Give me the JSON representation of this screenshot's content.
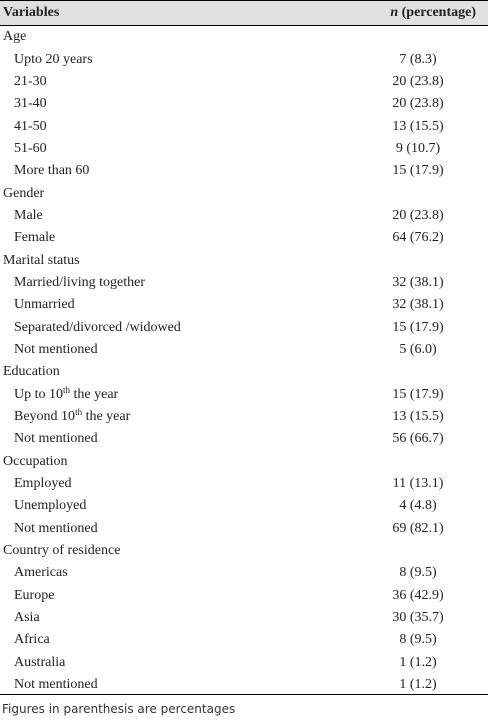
{
  "header": {
    "variables": "Variables",
    "n": "n",
    "percentage": "(percentage)"
  },
  "rows": [
    {
      "label": "Age",
      "type": "cat"
    },
    {
      "label": "Upto 20 years",
      "value": "7 (8.3)"
    },
    {
      "label": "21-30",
      "value": "20 (23.8)"
    },
    {
      "label": "31-40",
      "value": "20 (23.8)"
    },
    {
      "label": "41-50",
      "value": "13 (15.5)"
    },
    {
      "label": "51-60",
      "value": "9 (10.7)"
    },
    {
      "label": "More than 60",
      "value": "15 (17.9)"
    },
    {
      "label": "Gender",
      "type": "cat"
    },
    {
      "label": "Male",
      "value": "20 (23.8)"
    },
    {
      "label": "Female",
      "value": "64 (76.2)"
    },
    {
      "label": "Marital status",
      "type": "cat"
    },
    {
      "label": "Married/living together",
      "value": "32 (38.1)"
    },
    {
      "label": "Unmarried",
      "value": "32 (38.1)"
    },
    {
      "label": "Separated/divorced /widowed",
      "value": "15 (17.9)"
    },
    {
      "label": "Not mentioned",
      "value": "5 (6.0)"
    },
    {
      "label": "Education",
      "type": "cat"
    },
    {
      "label": "Up to 10",
      "sup": "th",
      "suffix": " the year",
      "value": "15 (17.9)"
    },
    {
      "label": "Beyond 10",
      "sup": "th",
      "suffix": " the year",
      "value": "13 (15.5)"
    },
    {
      "label": "Not mentioned",
      "value": "56 (66.7)"
    },
    {
      "label": "Occupation",
      "type": "cat"
    },
    {
      "label": "Employed",
      "value": "11 (13.1)"
    },
    {
      "label": "Unemployed",
      "value": "4 (4.8)"
    },
    {
      "label": "Not mentioned",
      "value": "69 (82.1)"
    },
    {
      "label": "Country of residence",
      "type": "cat"
    },
    {
      "label": "Americas",
      "value": "8 (9.5)"
    },
    {
      "label": "Europe",
      "value": "36 (42.9)"
    },
    {
      "label": "Asia",
      "value": "30 (35.7)"
    },
    {
      "label": "Africa",
      "value": "8 (9.5)"
    },
    {
      "label": "Australia",
      "value": "1 (1.2)"
    },
    {
      "label": "Not mentioned",
      "value": "1 (1.2)"
    }
  ],
  "footnote": "Figures in parenthesis are percentages"
}
